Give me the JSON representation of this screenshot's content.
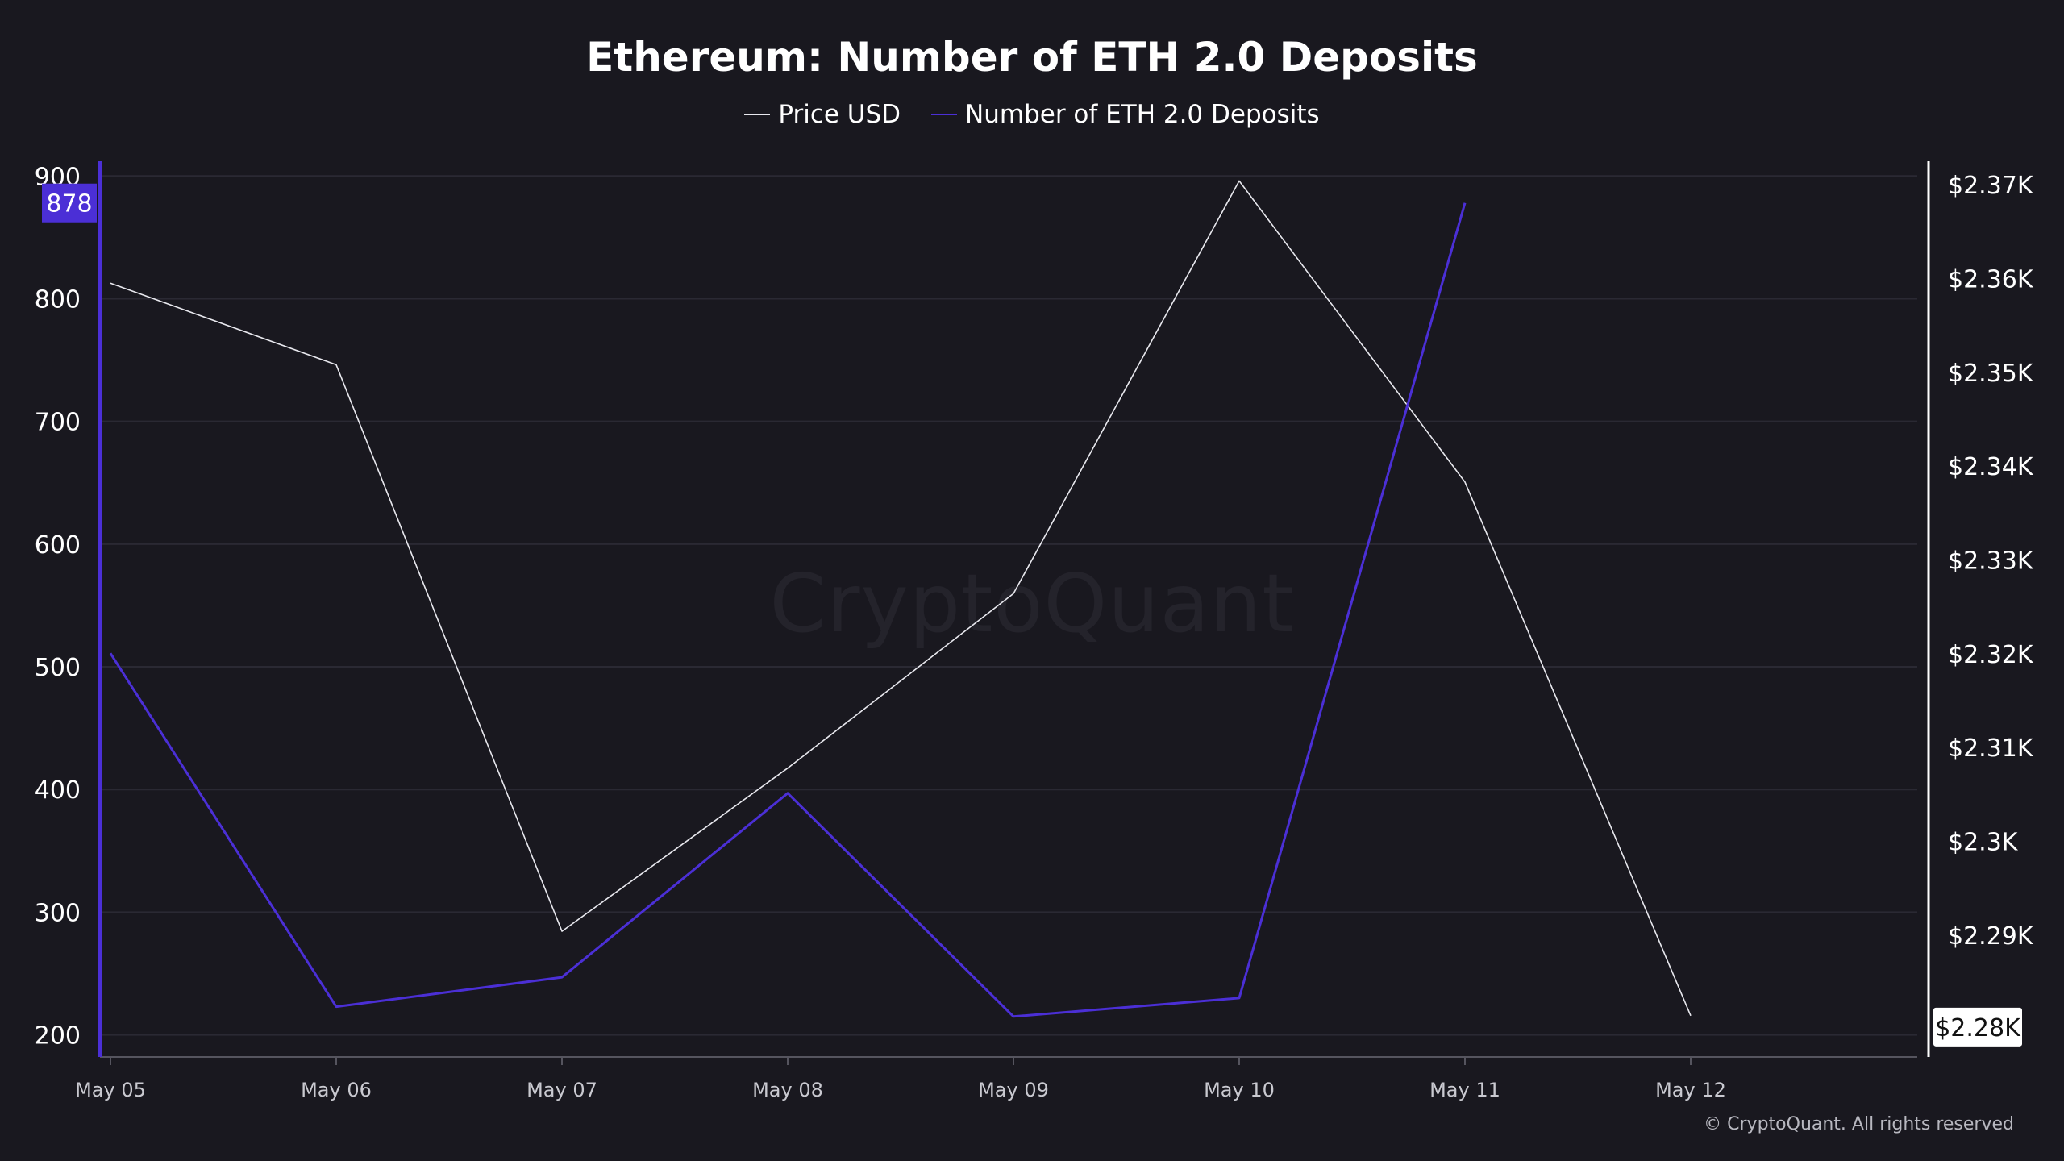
{
  "title": "Ethereum: Number of ETH 2.0 Deposits",
  "watermark": "CryptoQuant",
  "copyright": "© CryptoQuant. All rights reserved",
  "colors": {
    "background": "#19181f",
    "price": "#e8e8ee",
    "deposits": "#4b2fd6",
    "grid": "#2a2933",
    "axis_text": "#ffffff",
    "x_axis_text": "#c9c9d0"
  },
  "legend": [
    {
      "label": "Price USD",
      "color": "#e8e8ee"
    },
    {
      "label": "Number of ETH 2.0 Deposits",
      "color": "#4b2fd6"
    }
  ],
  "chart_data": {
    "type": "line",
    "title": "Ethereum: Number of ETH 2.0 Deposits",
    "x": [
      "May 05",
      "May 06",
      "May 07",
      "May 08",
      "May 09",
      "May 10",
      "May 11",
      "May 12"
    ],
    "series": [
      {
        "name": "Price USD",
        "axis": "right",
        "values": [
          2359.5,
          2350.8,
          2290.4,
          2307.8,
          2326.4,
          2370.4,
          2338.3,
          2281.4
        ]
      },
      {
        "name": "Number of ETH 2.0 Deposits",
        "axis": "left",
        "values": [
          511,
          223,
          247,
          397,
          215,
          230,
          878,
          null
        ]
      }
    ],
    "left_axis": {
      "ticks": [
        "900",
        "800",
        "700",
        "600",
        "500",
        "400",
        "300",
        "200"
      ],
      "tick_values": [
        900,
        800,
        700,
        600,
        500,
        400,
        300,
        200
      ],
      "range": [
        182,
        912
      ]
    },
    "right_axis": {
      "ticks": [
        "$2.37K",
        "$2.36K",
        "$2.35K",
        "$2.34K",
        "$2.33K",
        "$2.32K",
        "$2.31K",
        "$2.3K",
        "$2.29K"
      ],
      "tick_values": [
        2370,
        2360,
        2350,
        2340,
        2330,
        2320,
        2310,
        2300,
        2290
      ],
      "range": [
        2277,
        2372.5
      ]
    },
    "last_value_labels": {
      "left": "878",
      "right": "$2.28K"
    },
    "grid": true,
    "legend_position": "top-center"
  }
}
